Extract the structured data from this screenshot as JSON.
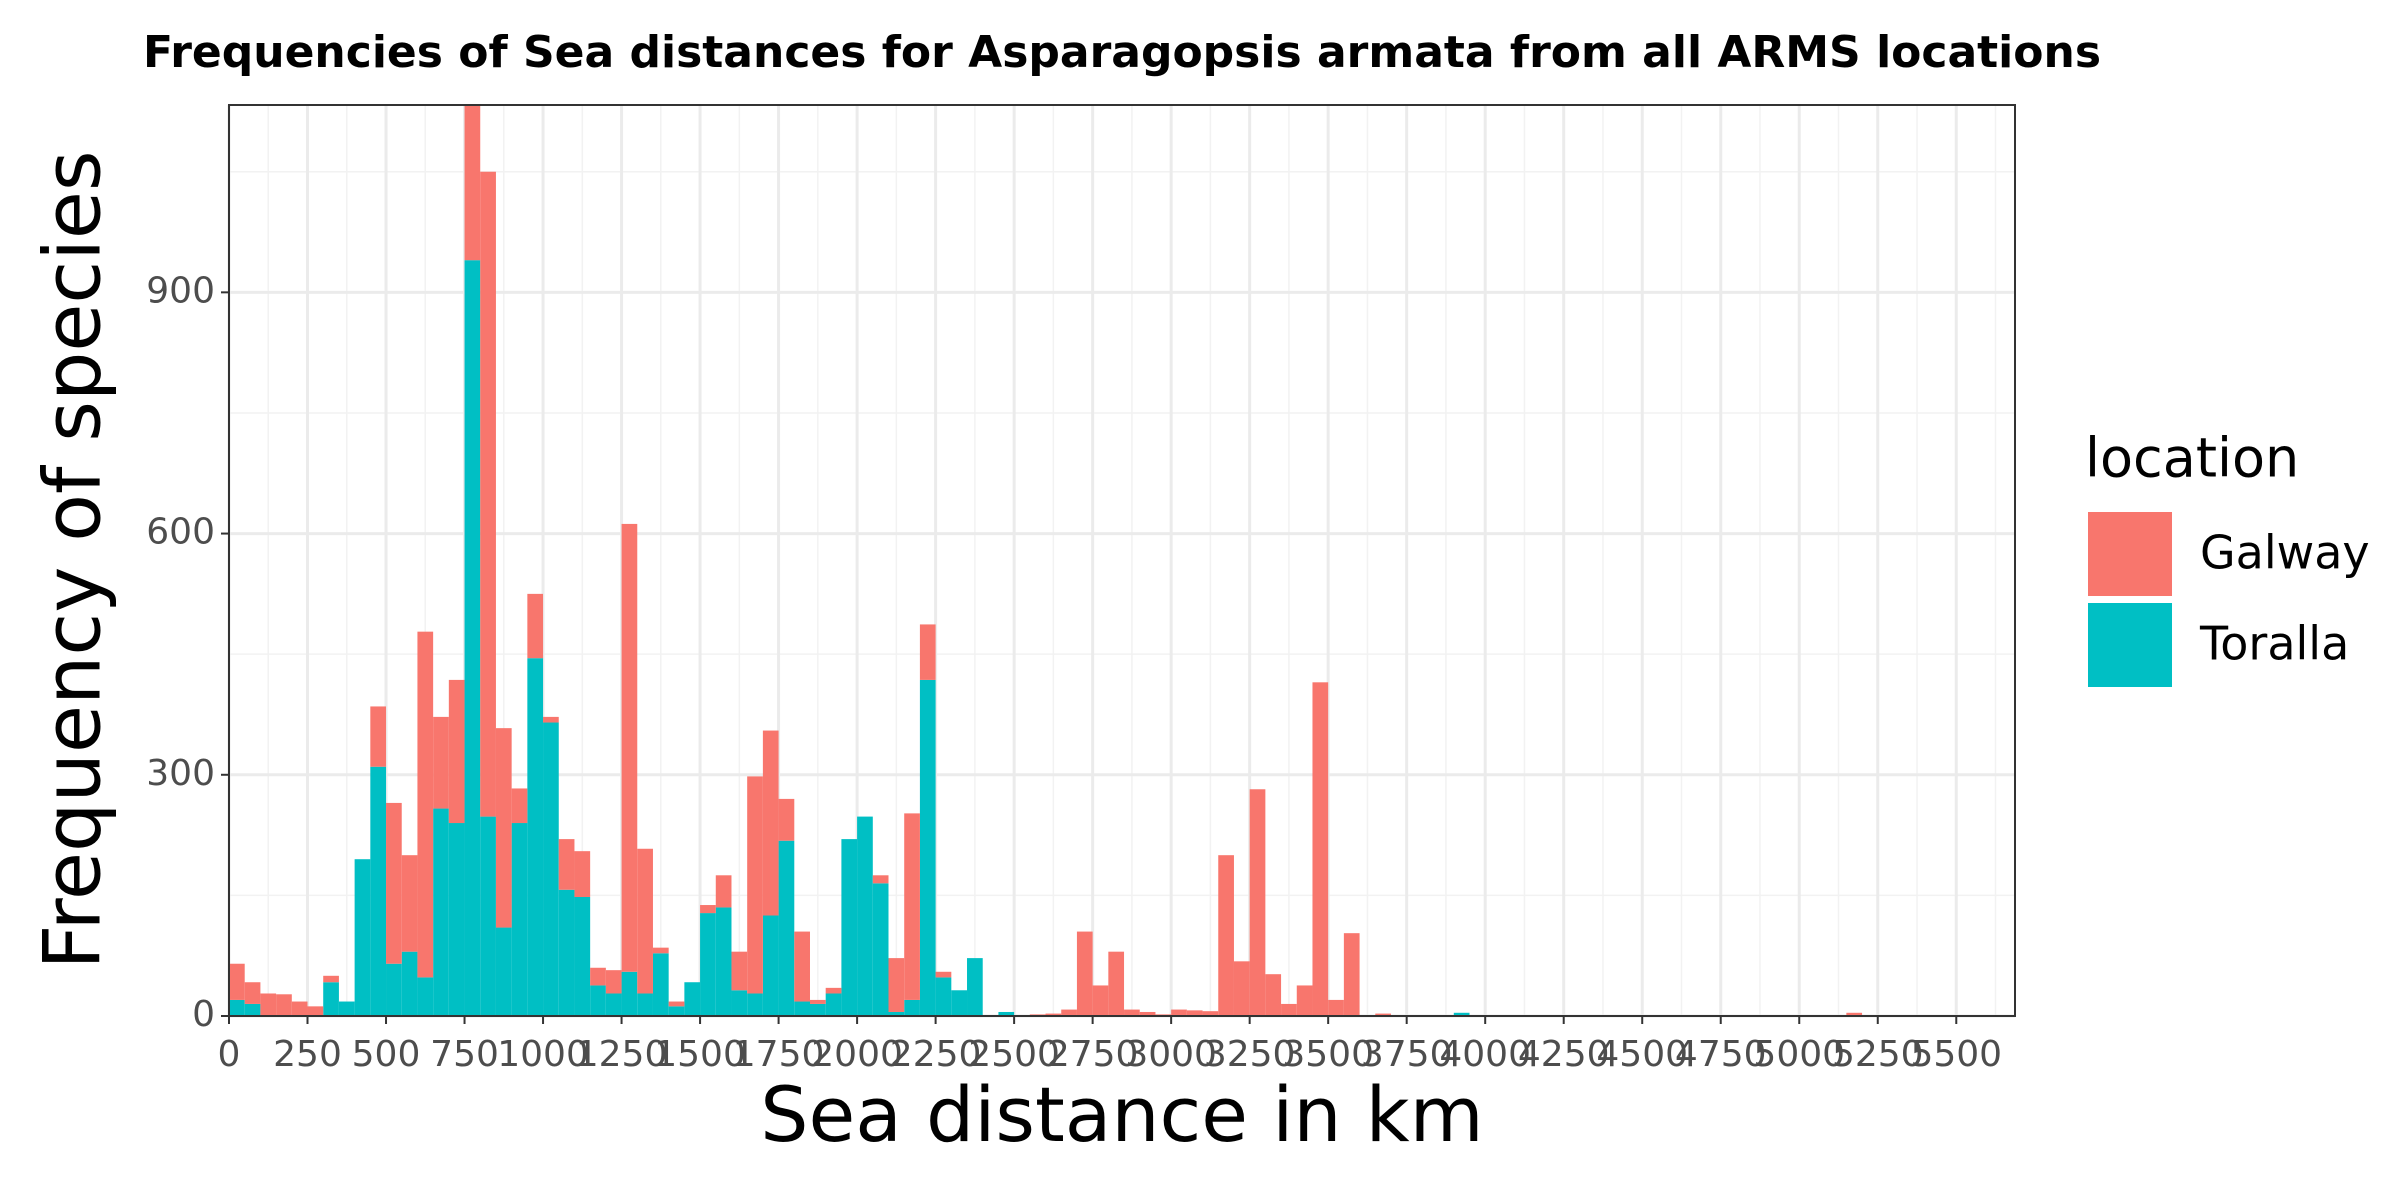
{
  "chart_data": {
    "type": "histogram",
    "title": "Frequencies of Sea distances for Asparagopsis armata from all ARMS locations",
    "x_label": "Sea distance in km",
    "y_label": "Frequency of species",
    "legend_title": "location",
    "stacked": true,
    "bins": [
      0,
      50,
      100,
      150,
      200,
      250,
      300,
      350,
      400,
      450,
      500,
      550,
      600,
      650,
      700,
      750,
      800,
      850,
      900,
      950,
      1000,
      1050,
      1100,
      1150,
      1200,
      1250,
      1300,
      1350,
      1400,
      1450,
      1500,
      1550,
      1600,
      1650,
      1700,
      1750,
      1800,
      1850,
      1900,
      1950,
      2000,
      2050,
      2100,
      2150,
      2200,
      2250,
      2300,
      2350,
      2400,
      2450,
      2500,
      2550,
      2600,
      2650,
      2700,
      2750,
      2800,
      2850,
      2900,
      2950,
      3000,
      3050,
      3100,
      3150,
      3200,
      3250,
      3300,
      3350,
      3400,
      3450,
      3500,
      3550,
      3600,
      3650,
      3700,
      3750,
      3800,
      3850,
      3900,
      3950,
      4000,
      4050,
      4100,
      4150,
      4200,
      4250,
      4300,
      4350,
      4400,
      4450,
      4500,
      4550,
      4600,
      4650,
      4700,
      4750,
      4800,
      4850,
      4900,
      4950,
      5000,
      5050,
      5100,
      5150,
      5200
    ],
    "series": [
      {
        "name": "Galway",
        "color": "#F8766D",
        "values": [
          45,
          27,
          28,
          27,
          18,
          12,
          8,
          0,
          0,
          75,
          200,
          120,
          430,
          114,
          178,
          193,
          802,
          248,
          43,
          80,
          7,
          63,
          57,
          22,
          29,
          557,
          180,
          7,
          6,
          0,
          10,
          40,
          48,
          270,
          230,
          52,
          87,
          5,
          7,
          0,
          0,
          10,
          67,
          232,
          69,
          7,
          0,
          0,
          0,
          0,
          0,
          2,
          3,
          8,
          105,
          38,
          80,
          8,
          5,
          2,
          8,
          7,
          6,
          200,
          68,
          282,
          52,
          15,
          38,
          415,
          20,
          103,
          0,
          3,
          0,
          0,
          0,
          0,
          0,
          0,
          0,
          0,
          0,
          0,
          0,
          0,
          0,
          0,
          0,
          0,
          0,
          0,
          0,
          0,
          0,
          0,
          0,
          0,
          0,
          0,
          0,
          0,
          0,
          4
        ]
      },
      {
        "name": "Toralla",
        "color": "#00BFC4",
        "values": [
          20,
          15,
          0,
          0,
          0,
          0,
          42,
          18,
          195,
          310,
          65,
          80,
          48,
          258,
          240,
          940,
          248,
          110,
          240,
          445,
          365,
          157,
          148,
          38,
          28,
          55,
          28,
          78,
          12,
          42,
          128,
          135,
          32,
          28,
          125,
          218,
          18,
          15,
          28,
          220,
          248,
          165,
          5,
          20,
          418,
          48,
          32,
          72,
          0,
          5,
          0,
          0,
          0,
          0,
          0,
          0,
          0,
          0,
          0,
          0,
          0,
          0,
          0,
          0,
          0,
          0,
          0,
          0,
          0,
          0,
          0,
          0,
          0,
          0,
          0,
          0,
          0,
          0,
          4,
          0,
          0,
          0,
          0,
          0,
          0,
          0,
          0,
          0,
          0,
          0,
          0,
          0,
          0,
          0,
          0,
          0,
          0,
          0,
          0,
          0,
          0,
          0,
          0,
          0
        ]
      }
    ],
    "xlim": [
      0,
      5687
    ],
    "ylim": [
      0,
      1133
    ],
    "xticks": [
      0,
      250,
      500,
      750,
      1000,
      1250,
      1500,
      1750,
      2000,
      2250,
      2500,
      2750,
      3000,
      3250,
      3500,
      3750,
      4000,
      4250,
      4500,
      4750,
      5000,
      5250,
      5500
    ],
    "xminorticks": [
      125,
      375,
      625,
      875,
      1125,
      1375,
      1625,
      1875,
      2125,
      2375,
      2625,
      2875,
      3125,
      3375,
      3625,
      3875,
      4125,
      4375,
      4625,
      4875,
      5125,
      5375,
      5625
    ],
    "yticks": [
      0,
      300,
      600,
      900
    ],
    "yminorticks": [
      150,
      450,
      750,
      1050
    ],
    "grid": true,
    "legend": "right"
  }
}
